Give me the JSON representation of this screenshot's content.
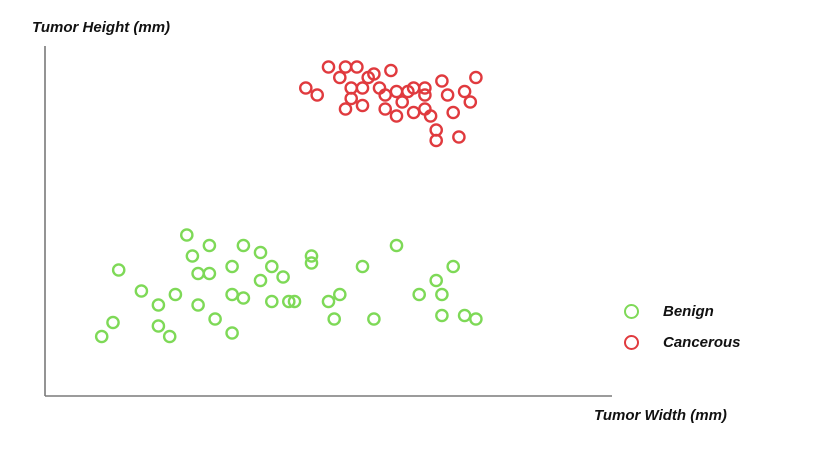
{
  "chart_data": {
    "type": "scatter",
    "xlabel": "Tumor Width (mm)",
    "ylabel": "Tumor Height (mm)",
    "grid": false,
    "legend_position": "right",
    "xlim": [
      0,
      100
    ],
    "ylim": [
      0,
      100
    ],
    "series": [
      {
        "name": "Benign",
        "color": "#7ed957",
        "points": [
          [
            10,
            17
          ],
          [
            12,
            21
          ],
          [
            13,
            36
          ],
          [
            17,
            30
          ],
          [
            20,
            26
          ],
          [
            20,
            20
          ],
          [
            22,
            17
          ],
          [
            23,
            29
          ],
          [
            25,
            46
          ],
          [
            26,
            40
          ],
          [
            27,
            26
          ],
          [
            27,
            35
          ],
          [
            29,
            35
          ],
          [
            29,
            43
          ],
          [
            30,
            22
          ],
          [
            33,
            37
          ],
          [
            33,
            18
          ],
          [
            33,
            29
          ],
          [
            35,
            28
          ],
          [
            35,
            43
          ],
          [
            38,
            33
          ],
          [
            38,
            41
          ],
          [
            40,
            27
          ],
          [
            40,
            37
          ],
          [
            42,
            34
          ],
          [
            43,
            27
          ],
          [
            44,
            27
          ],
          [
            47,
            38
          ],
          [
            47,
            40
          ],
          [
            50,
            27
          ],
          [
            51,
            22
          ],
          [
            52,
            29
          ],
          [
            56,
            37
          ],
          [
            58,
            22
          ],
          [
            62,
            43
          ],
          [
            66,
            29
          ],
          [
            69,
            33
          ],
          [
            70,
            23
          ],
          [
            70,
            29
          ],
          [
            72,
            37
          ],
          [
            74,
            23
          ],
          [
            76,
            22
          ]
        ]
      },
      {
        "name": "Cancerous",
        "color": "#e03a3e",
        "points": [
          [
            46,
            88
          ],
          [
            48,
            86
          ],
          [
            50,
            94
          ],
          [
            52,
            91
          ],
          [
            53,
            94
          ],
          [
            53,
            82
          ],
          [
            54,
            88
          ],
          [
            54,
            85
          ],
          [
            55,
            94
          ],
          [
            56,
            88
          ],
          [
            56,
            83
          ],
          [
            57,
            91
          ],
          [
            58,
            92
          ],
          [
            59,
            88
          ],
          [
            60,
            86
          ],
          [
            60,
            82
          ],
          [
            61,
            93
          ],
          [
            62,
            87
          ],
          [
            62,
            80
          ],
          [
            63,
            84
          ],
          [
            64,
            87
          ],
          [
            65,
            81
          ],
          [
            65,
            88
          ],
          [
            67,
            88
          ],
          [
            67,
            86
          ],
          [
            67,
            82
          ],
          [
            68,
            80
          ],
          [
            69,
            76
          ],
          [
            69,
            73
          ],
          [
            70,
            90
          ],
          [
            71,
            86
          ],
          [
            72,
            81
          ],
          [
            73,
            74
          ],
          [
            74,
            87
          ],
          [
            75,
            84
          ],
          [
            76,
            91
          ]
        ]
      }
    ]
  }
}
